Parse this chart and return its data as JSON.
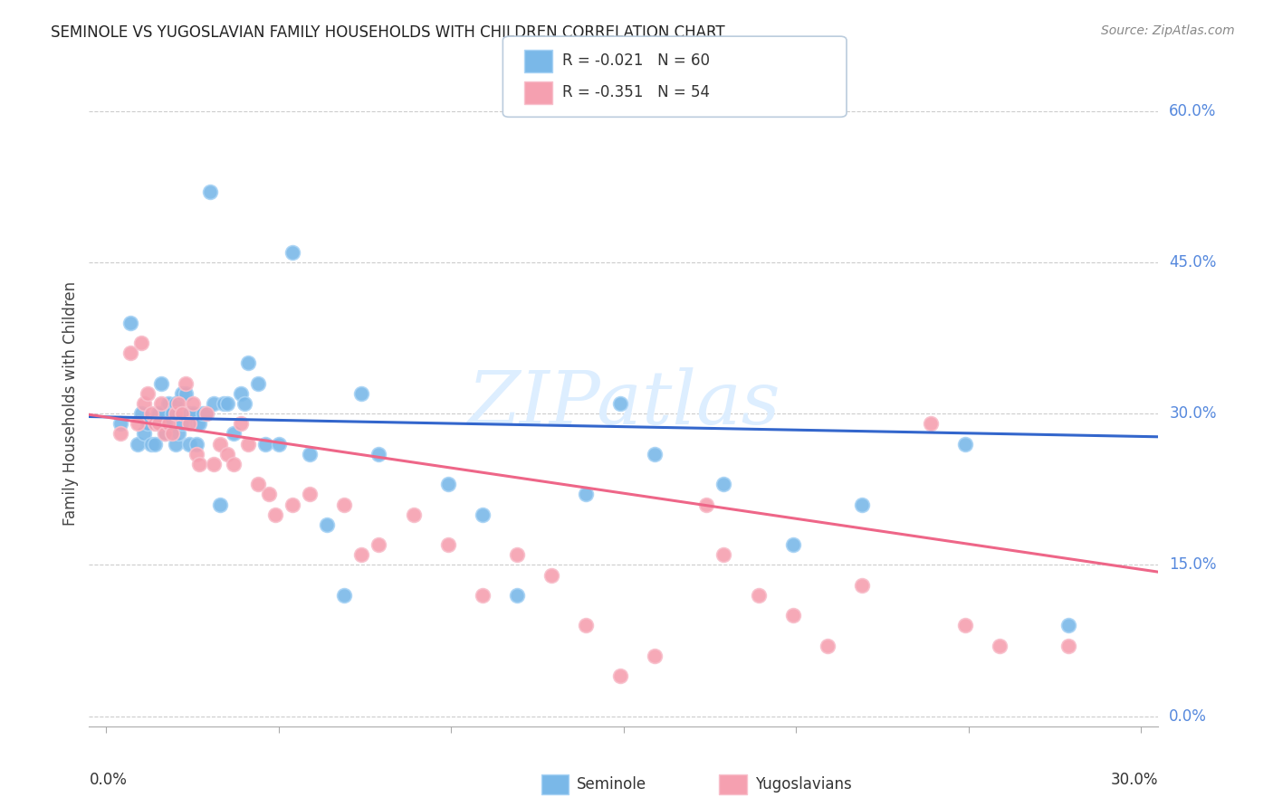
{
  "title": "SEMINOLE VS YUGOSLAVIAN FAMILY HOUSEHOLDS WITH CHILDREN CORRELATION CHART",
  "source": "Source: ZipAtlas.com",
  "ylabel": "Family Households with Children",
  "yticks": [
    0.0,
    0.15,
    0.3,
    0.45,
    0.6
  ],
  "ytick_labels": [
    "0.0%",
    "15.0%",
    "30.0%",
    "45.0%",
    "60.0%"
  ],
  "xticks": [
    0.0,
    0.05,
    0.1,
    0.15,
    0.2,
    0.25,
    0.3
  ],
  "xlim": [
    -0.005,
    0.305
  ],
  "ylim": [
    -0.01,
    0.63
  ],
  "seminole_color": "#7ab8e8",
  "seminole_edge_color": "#aad4f5",
  "yugoslavian_color": "#f5a0b0",
  "yugoslavian_edge_color": "#f8c0cc",
  "seminole_line_color": "#3366cc",
  "yugoslavian_line_color": "#ee6688",
  "background_color": "#ffffff",
  "grid_color": "#cccccc",
  "watermark": "ZIPatlas",
  "watermark_color": "#ddeeff",
  "legend_text_color": "#333333",
  "axis_label_color": "#5588dd",
  "title_color": "#222222",
  "source_color": "#888888",
  "legend_R_seminole": "R = -0.021",
  "legend_N_seminole": "N = 60",
  "legend_R_yugoslavian": "R = -0.351",
  "legend_N_yugoslavian": "N = 54",
  "seminole_x": [
    0.004,
    0.007,
    0.009,
    0.01,
    0.011,
    0.012,
    0.013,
    0.014,
    0.015,
    0.015,
    0.016,
    0.017,
    0.017,
    0.018,
    0.019,
    0.019,
    0.02,
    0.02,
    0.021,
    0.021,
    0.022,
    0.022,
    0.023,
    0.024,
    0.024,
    0.025,
    0.026,
    0.026,
    0.027,
    0.028,
    0.029,
    0.03,
    0.031,
    0.033,
    0.034,
    0.035,
    0.037,
    0.039,
    0.04,
    0.041,
    0.044,
    0.046,
    0.05,
    0.054,
    0.059,
    0.064,
    0.069,
    0.074,
    0.079,
    0.099,
    0.109,
    0.119,
    0.139,
    0.149,
    0.159,
    0.179,
    0.199,
    0.219,
    0.249,
    0.279
  ],
  "seminole_y": [
    0.29,
    0.39,
    0.27,
    0.3,
    0.28,
    0.29,
    0.27,
    0.27,
    0.3,
    0.3,
    0.33,
    0.28,
    0.29,
    0.31,
    0.3,
    0.3,
    0.31,
    0.27,
    0.28,
    0.3,
    0.29,
    0.32,
    0.32,
    0.3,
    0.27,
    0.3,
    0.29,
    0.27,
    0.29,
    0.3,
    0.3,
    0.52,
    0.31,
    0.21,
    0.31,
    0.31,
    0.28,
    0.32,
    0.31,
    0.35,
    0.33,
    0.27,
    0.27,
    0.46,
    0.26,
    0.19,
    0.12,
    0.32,
    0.26,
    0.23,
    0.2,
    0.12,
    0.22,
    0.31,
    0.26,
    0.23,
    0.17,
    0.21,
    0.27,
    0.09
  ],
  "yugoslavian_x": [
    0.004,
    0.007,
    0.009,
    0.01,
    0.011,
    0.012,
    0.013,
    0.014,
    0.015,
    0.016,
    0.017,
    0.018,
    0.019,
    0.02,
    0.021,
    0.022,
    0.023,
    0.024,
    0.025,
    0.026,
    0.027,
    0.029,
    0.031,
    0.033,
    0.035,
    0.037,
    0.039,
    0.041,
    0.044,
    0.047,
    0.049,
    0.054,
    0.059,
    0.069,
    0.074,
    0.079,
    0.089,
    0.099,
    0.109,
    0.119,
    0.129,
    0.139,
    0.149,
    0.159,
    0.174,
    0.179,
    0.189,
    0.199,
    0.209,
    0.219,
    0.239,
    0.249,
    0.259,
    0.279
  ],
  "yugoslavian_y": [
    0.28,
    0.36,
    0.29,
    0.37,
    0.31,
    0.32,
    0.3,
    0.29,
    0.29,
    0.31,
    0.28,
    0.29,
    0.28,
    0.3,
    0.31,
    0.3,
    0.33,
    0.29,
    0.31,
    0.26,
    0.25,
    0.3,
    0.25,
    0.27,
    0.26,
    0.25,
    0.29,
    0.27,
    0.23,
    0.22,
    0.2,
    0.21,
    0.22,
    0.21,
    0.16,
    0.17,
    0.2,
    0.17,
    0.12,
    0.16,
    0.14,
    0.09,
    0.04,
    0.06,
    0.21,
    0.16,
    0.12,
    0.1,
    0.07,
    0.13,
    0.29,
    0.09,
    0.07,
    0.07
  ],
  "seminole_trend": [
    0.297,
    0.277
  ],
  "yugoslavian_trend": [
    0.299,
    0.143
  ]
}
